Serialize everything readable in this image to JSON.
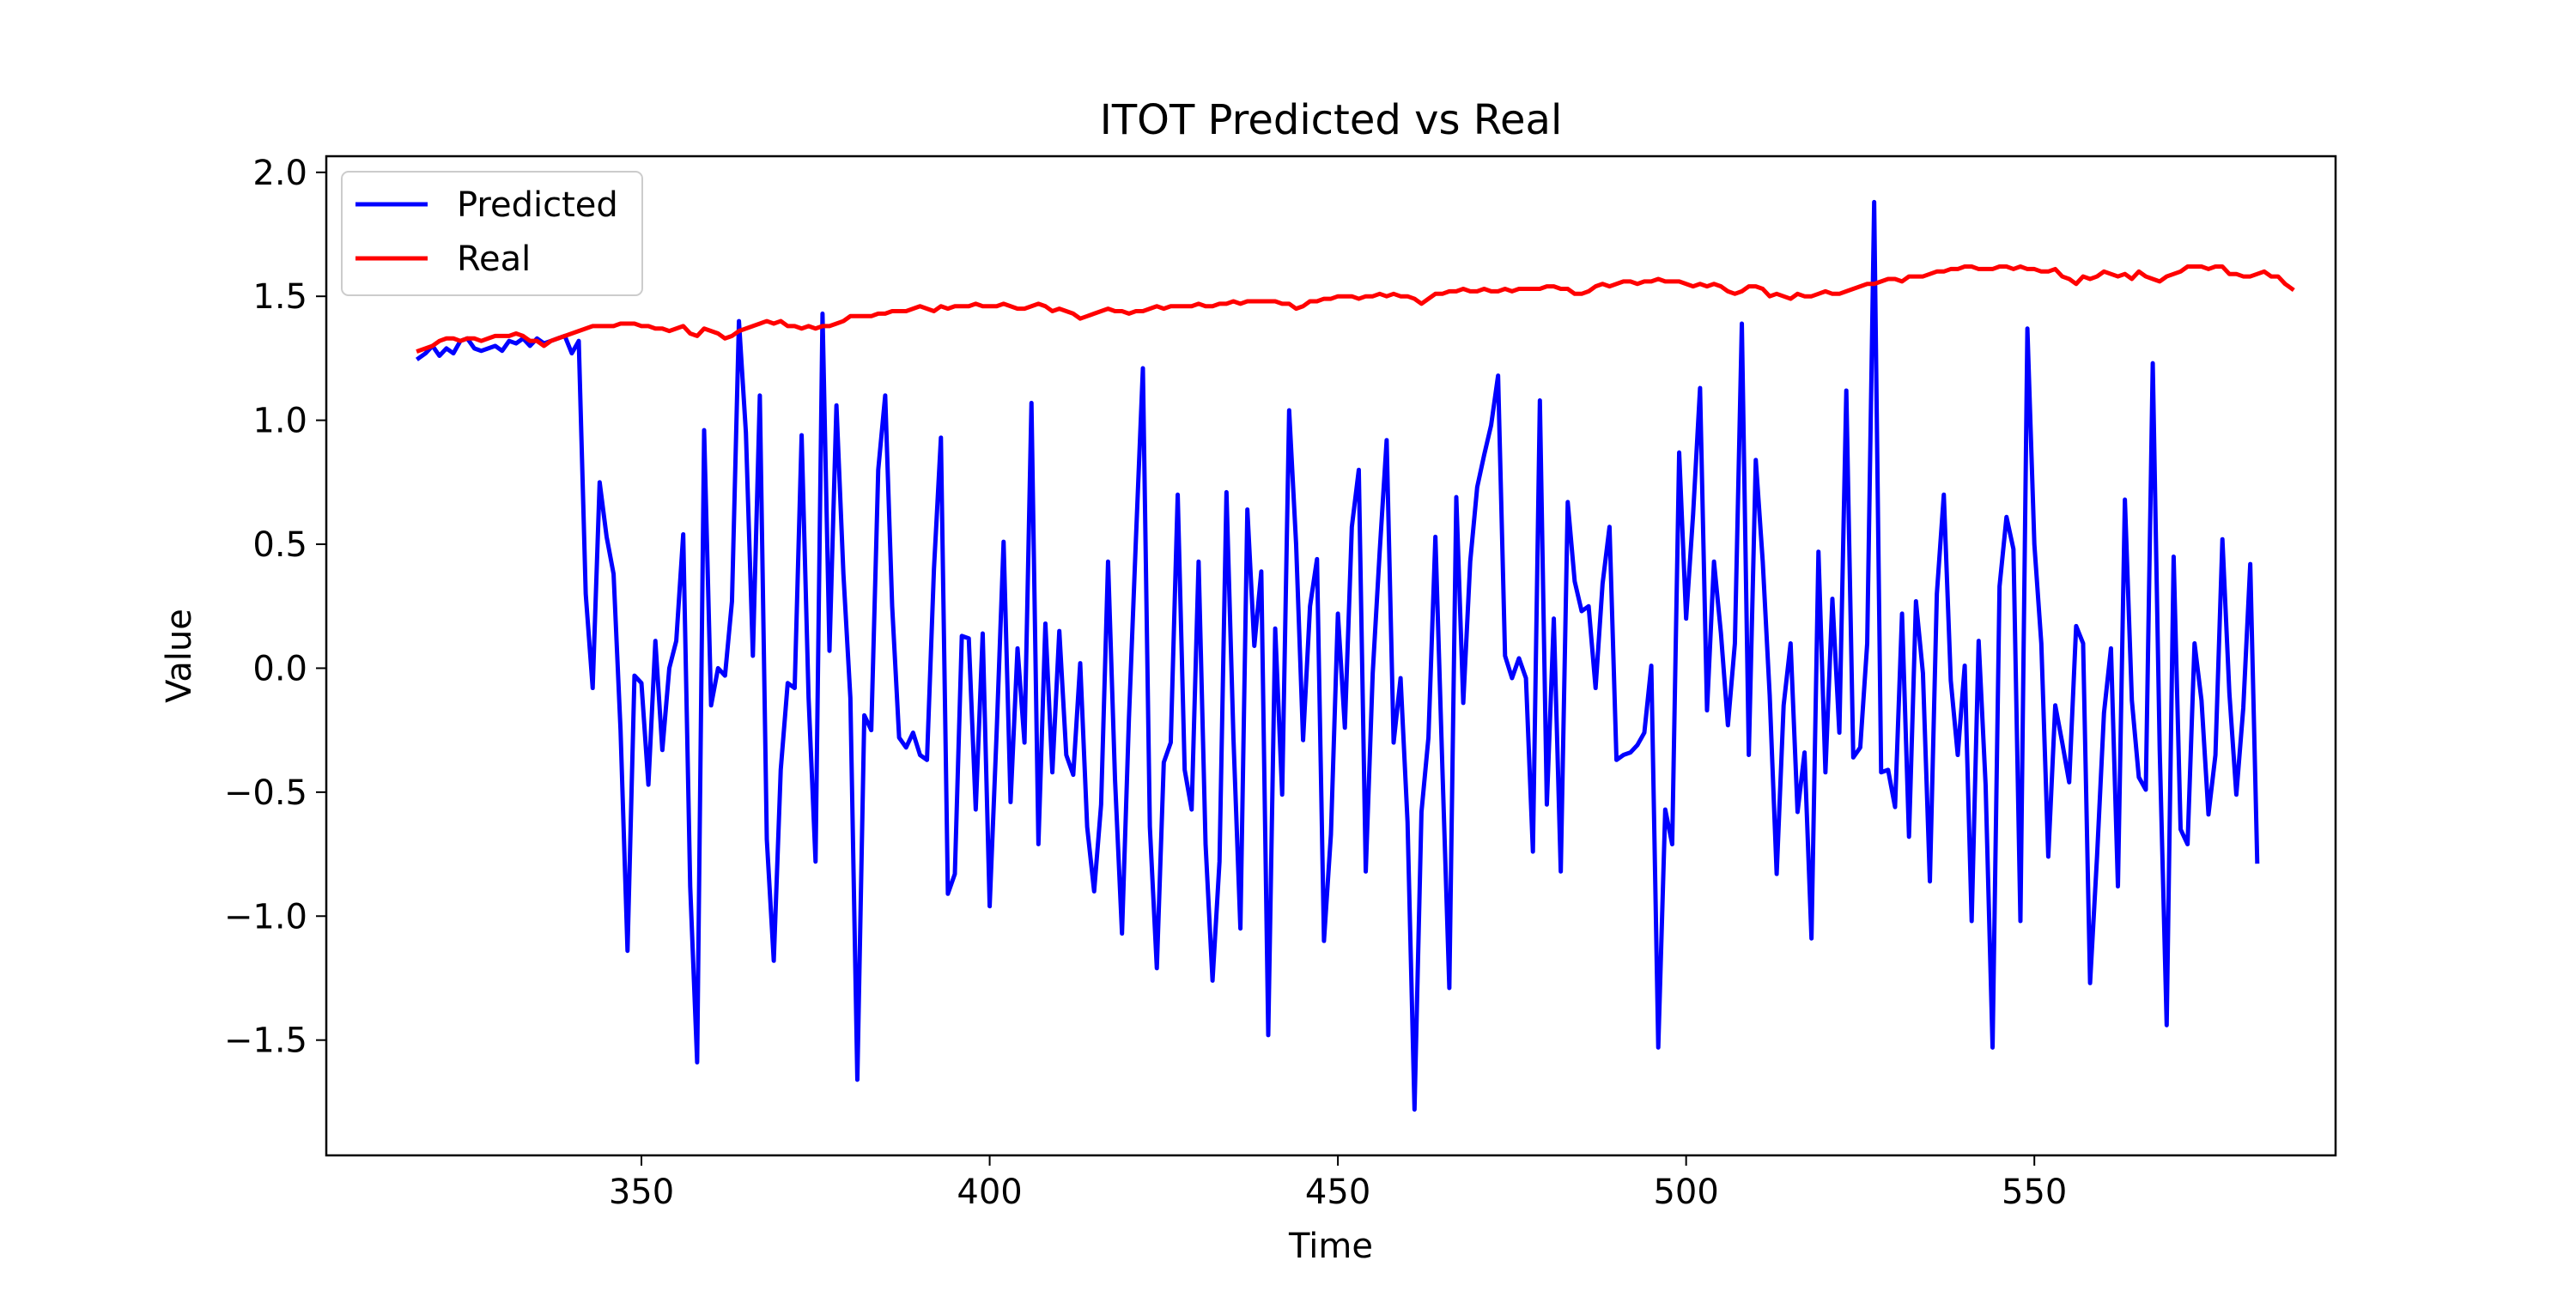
{
  "chart_data": {
    "type": "line",
    "title": "ITOT Predicted vs Real",
    "xlabel": "Time",
    "ylabel": "Value",
    "xlim": [
      304.75,
      593.25
    ],
    "ylim": [
      -1.965,
      2.065
    ],
    "xticks": [
      350,
      400,
      450,
      500,
      550
    ],
    "xtick_labels": [
      "350",
      "400",
      "450",
      "500",
      "550"
    ],
    "yticks": [
      -1.5,
      -1.0,
      -0.5,
      0.0,
      0.5,
      1.0,
      1.5,
      2.0
    ],
    "ytick_labels": [
      "−1.5",
      "−1.0",
      "−0.5",
      "0.0",
      "0.5",
      "1.0",
      "1.5",
      "2.0"
    ],
    "grid": false,
    "legend_position": "upper-left",
    "x_start": 318,
    "series": [
      {
        "name": "Predicted",
        "color": "#0000ff",
        "values": [
          1.25,
          1.27,
          1.3,
          1.26,
          1.29,
          1.27,
          1.32,
          1.33,
          1.29,
          1.28,
          1.29,
          1.3,
          1.28,
          1.32,
          1.31,
          1.33,
          1.3,
          1.33,
          1.31,
          1.32,
          1.33,
          1.34,
          1.27,
          1.32,
          0.3,
          -0.08,
          0.75,
          0.53,
          0.38,
          -0.25,
          -1.14,
          -0.03,
          -0.06,
          -0.47,
          0.11,
          -0.33,
          0.0,
          0.11,
          0.54,
          -0.88,
          -1.59,
          0.96,
          -0.15,
          0.0,
          -0.03,
          0.27,
          1.4,
          0.95,
          0.05,
          1.1,
          -0.69,
          -1.18,
          -0.41,
          -0.06,
          -0.08,
          0.94,
          -0.12,
          -0.78,
          1.43,
          0.07,
          1.06,
          0.38,
          -0.12,
          -1.66,
          -0.19,
          -0.25,
          0.8,
          1.1,
          0.25,
          -0.28,
          -0.32,
          -0.26,
          -0.35,
          -0.37,
          0.4,
          0.93,
          -0.91,
          -0.83,
          0.13,
          0.12,
          -0.57,
          0.14,
          -0.96,
          -0.26,
          0.51,
          -0.54,
          0.08,
          -0.3,
          1.07,
          -0.71,
          0.18,
          -0.42,
          0.15,
          -0.35,
          -0.43,
          0.02,
          -0.64,
          -0.9,
          -0.55,
          0.43,
          -0.45,
          -1.07,
          -0.2,
          0.52,
          1.21,
          -0.64,
          -1.21,
          -0.38,
          -0.3,
          0.7,
          -0.41,
          -0.57,
          0.43,
          -0.71,
          -1.26,
          -0.78,
          0.71,
          -0.28,
          -1.05,
          0.64,
          0.09,
          0.39,
          -1.48,
          0.16,
          -0.51,
          1.04,
          0.5,
          -0.29,
          0.25,
          0.44,
          -1.1,
          -0.67,
          0.22,
          -0.24,
          0.57,
          0.8,
          -0.82,
          -0.02,
          0.47,
          0.92,
          -0.3,
          -0.04,
          -0.62,
          -1.78,
          -0.58,
          -0.28,
          0.53,
          -0.4,
          -1.29,
          0.69,
          -0.14,
          0.43,
          0.73,
          0.86,
          0.98,
          1.18,
          0.05,
          -0.04,
          0.04,
          -0.04,
          -0.74,
          1.08,
          -0.55,
          0.2,
          -0.82,
          0.67,
          0.35,
          0.23,
          0.25,
          -0.08,
          0.34,
          0.57,
          -0.37,
          -0.35,
          -0.34,
          -0.31,
          -0.26,
          0.01,
          -1.53,
          -0.57,
          -0.71,
          0.87,
          0.2,
          0.62,
          1.13,
          -0.17,
          0.43,
          0.14,
          -0.23,
          0.1,
          1.39,
          -0.35,
          0.84,
          0.43,
          -0.11,
          -0.83,
          -0.15,
          0.1,
          -0.58,
          -0.34,
          -1.09,
          0.47,
          -0.42,
          0.28,
          -0.26,
          1.12,
          -0.36,
          -0.32,
          0.1,
          1.88,
          -0.42,
          -0.41,
          -0.56,
          0.22,
          -0.68,
          0.27,
          -0.02,
          -0.86,
          0.3,
          0.7,
          -0.05,
          -0.35,
          0.01,
          -1.02,
          0.11,
          -0.47,
          -1.53,
          0.33,
          0.61,
          0.48,
          -1.02,
          1.37,
          0.5,
          0.1,
          -0.76,
          -0.15,
          -0.3,
          -0.46,
          0.17,
          0.1,
          -1.27,
          -0.76,
          -0.18,
          0.08,
          -0.88,
          0.68,
          -0.13,
          -0.44,
          -0.49,
          1.23,
          -0.33,
          -1.44,
          0.45,
          -0.65,
          -0.71,
          0.1,
          -0.13,
          -0.59,
          -0.35,
          0.52,
          -0.1,
          -0.51,
          -0.16,
          0.42,
          -0.78
        ]
      },
      {
        "name": "Real",
        "color": "#ff0000",
        "values": [
          1.28,
          1.29,
          1.3,
          1.32,
          1.33,
          1.33,
          1.32,
          1.33,
          1.33,
          1.32,
          1.33,
          1.34,
          1.34,
          1.34,
          1.35,
          1.34,
          1.32,
          1.32,
          1.3,
          1.32,
          1.33,
          1.34,
          1.35,
          1.36,
          1.37,
          1.38,
          1.38,
          1.38,
          1.38,
          1.39,
          1.39,
          1.39,
          1.38,
          1.38,
          1.37,
          1.37,
          1.36,
          1.37,
          1.38,
          1.35,
          1.34,
          1.37,
          1.36,
          1.35,
          1.33,
          1.34,
          1.36,
          1.37,
          1.38,
          1.39,
          1.4,
          1.39,
          1.4,
          1.38,
          1.38,
          1.37,
          1.38,
          1.37,
          1.38,
          1.38,
          1.39,
          1.4,
          1.42,
          1.42,
          1.42,
          1.42,
          1.43,
          1.43,
          1.44,
          1.44,
          1.44,
          1.45,
          1.46,
          1.45,
          1.44,
          1.46,
          1.45,
          1.46,
          1.46,
          1.46,
          1.47,
          1.46,
          1.46,
          1.46,
          1.47,
          1.46,
          1.45,
          1.45,
          1.46,
          1.47,
          1.46,
          1.44,
          1.45,
          1.44,
          1.43,
          1.41,
          1.42,
          1.43,
          1.44,
          1.45,
          1.44,
          1.44,
          1.43,
          1.44,
          1.44,
          1.45,
          1.46,
          1.45,
          1.46,
          1.46,
          1.46,
          1.46,
          1.47,
          1.46,
          1.46,
          1.47,
          1.47,
          1.48,
          1.47,
          1.48,
          1.48,
          1.48,
          1.48,
          1.48,
          1.47,
          1.47,
          1.45,
          1.46,
          1.48,
          1.48,
          1.49,
          1.49,
          1.5,
          1.5,
          1.5,
          1.49,
          1.5,
          1.5,
          1.51,
          1.5,
          1.51,
          1.5,
          1.5,
          1.49,
          1.47,
          1.49,
          1.51,
          1.51,
          1.52,
          1.52,
          1.53,
          1.52,
          1.52,
          1.53,
          1.52,
          1.52,
          1.53,
          1.52,
          1.53,
          1.53,
          1.53,
          1.53,
          1.54,
          1.54,
          1.53,
          1.53,
          1.51,
          1.51,
          1.52,
          1.54,
          1.55,
          1.54,
          1.55,
          1.56,
          1.56,
          1.55,
          1.56,
          1.56,
          1.57,
          1.56,
          1.56,
          1.56,
          1.55,
          1.54,
          1.55,
          1.54,
          1.55,
          1.54,
          1.52,
          1.51,
          1.52,
          1.54,
          1.54,
          1.53,
          1.5,
          1.51,
          1.5,
          1.49,
          1.51,
          1.5,
          1.5,
          1.51,
          1.52,
          1.51,
          1.51,
          1.52,
          1.53,
          1.54,
          1.55,
          1.55,
          1.56,
          1.57,
          1.57,
          1.56,
          1.58,
          1.58,
          1.58,
          1.59,
          1.6,
          1.6,
          1.61,
          1.61,
          1.62,
          1.62,
          1.61,
          1.61,
          1.61,
          1.62,
          1.62,
          1.61,
          1.62,
          1.61,
          1.61,
          1.6,
          1.6,
          1.61,
          1.58,
          1.57,
          1.55,
          1.58,
          1.57,
          1.58,
          1.6,
          1.59,
          1.58,
          1.59,
          1.57,
          1.6,
          1.58,
          1.57,
          1.56,
          1.58,
          1.59,
          1.6,
          1.62,
          1.62,
          1.62,
          1.61,
          1.62,
          1.62,
          1.59,
          1.59,
          1.58,
          1.58,
          1.59,
          1.6,
          1.58,
          1.58,
          1.55,
          1.53
        ]
      }
    ]
  }
}
